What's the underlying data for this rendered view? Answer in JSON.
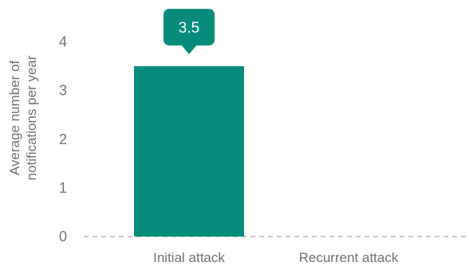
{
  "chart_data": {
    "type": "bar",
    "title": "",
    "categories": [
      "Initial attack",
      "Recurrent attack"
    ],
    "values": [
      3.5,
      null
    ],
    "ylabel": [
      "Average number of",
      "notifications per year"
    ],
    "xlabel": "",
    "ylim": [
      0,
      4.5
    ],
    "yticks": [
      0,
      1,
      2,
      3,
      4
    ],
    "data_labels": [
      "3.5",
      ""
    ],
    "grid": false,
    "bar_color": "#078c7c",
    "baseline_style": "dashed"
  }
}
